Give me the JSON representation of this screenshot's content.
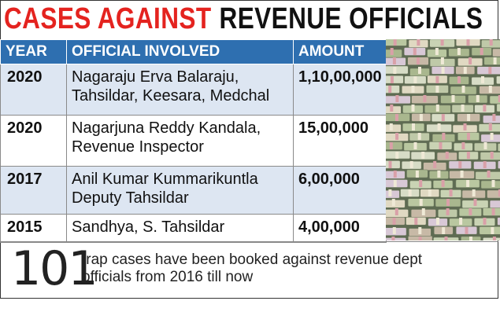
{
  "headline": {
    "red_text": "CASES AGAINST",
    "black_text": "REVENUE OFFICIALS",
    "colors": {
      "red": "#e4231f",
      "black": "#111111"
    }
  },
  "table": {
    "headers": {
      "year": "YEAR",
      "official": "OFFICIAL INVOLVED",
      "amount": "AMOUNT"
    },
    "header_color": "#2e6fb0",
    "shade_color": "#dde6f2",
    "rows": [
      {
        "year": "2020",
        "official_line1": "Nagaraju Erva Balaraju,",
        "official_line2": "Tahsildar, Keesara, Medchal",
        "amount": "1,10,00,000"
      },
      {
        "year": "2020",
        "official_line1": "Nagarjuna Reddy Kandala,",
        "official_line2": "Revenue Inspector",
        "amount": "15,00,000"
      },
      {
        "year": "2017",
        "official_line1": "Anil Kumar Kummarikuntla",
        "official_line2": "Deputy Tahsildar",
        "amount": "6,00,000"
      },
      {
        "year": "2015",
        "official_line1": "Sandhya, S. Tahsildar",
        "official_line2": "",
        "amount": "4,00,000"
      }
    ]
  },
  "footer": {
    "number": "101",
    "line1": "trap cases have been booked against revenue dept",
    "line2": "officials from 2016 till now"
  }
}
